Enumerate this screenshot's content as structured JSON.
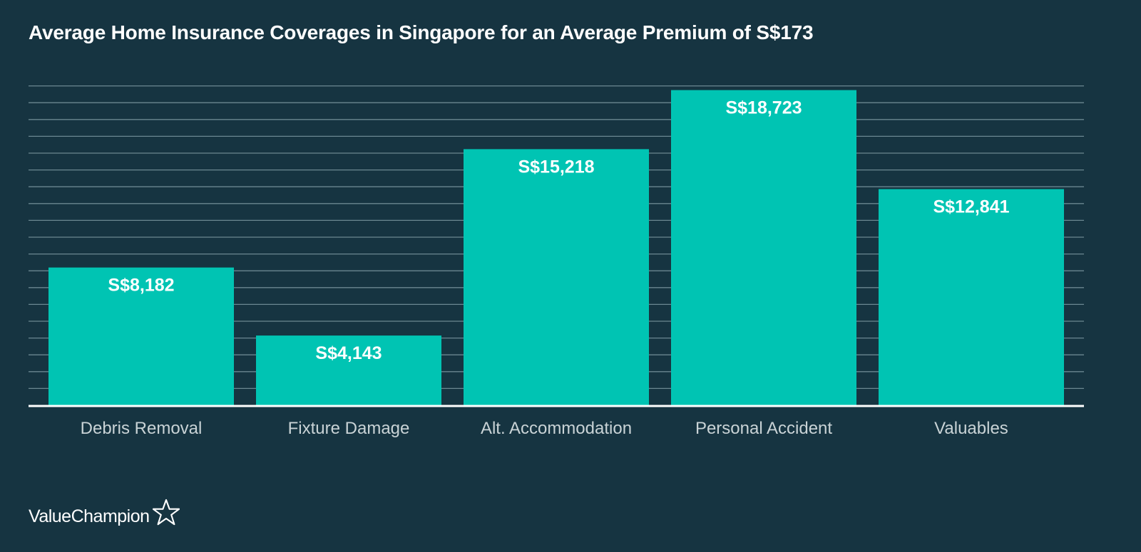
{
  "title": "Average Home Insurance Coverages in Singapore for an Average Premium of S$173",
  "brand": {
    "name": "ValueChampion",
    "logo_icon": "star-outline-icon"
  },
  "colors": {
    "background": "#163441",
    "bar": "#00c4b3",
    "gridline": "#6b8791",
    "axis_text": "#c9d3d6",
    "label_text": "#ffffff"
  },
  "chart_data": {
    "type": "bar",
    "title": "Average Home Insurance Coverages in Singapore for an Average Premium of S$173",
    "xlabel": "",
    "ylabel": "",
    "categories": [
      "Debris Removal",
      "Fixture Damage",
      "Alt. Accommodation",
      "Personal Accident",
      "Valuables"
    ],
    "values": [
      8182,
      4143,
      15218,
      18723,
      12841
    ],
    "data_labels": [
      "S$8,182",
      "S$4,143",
      "S$15,218",
      "S$18,723",
      "S$12,841"
    ],
    "ylim": [
      0,
      19000
    ],
    "grid": true,
    "legend": "none"
  }
}
